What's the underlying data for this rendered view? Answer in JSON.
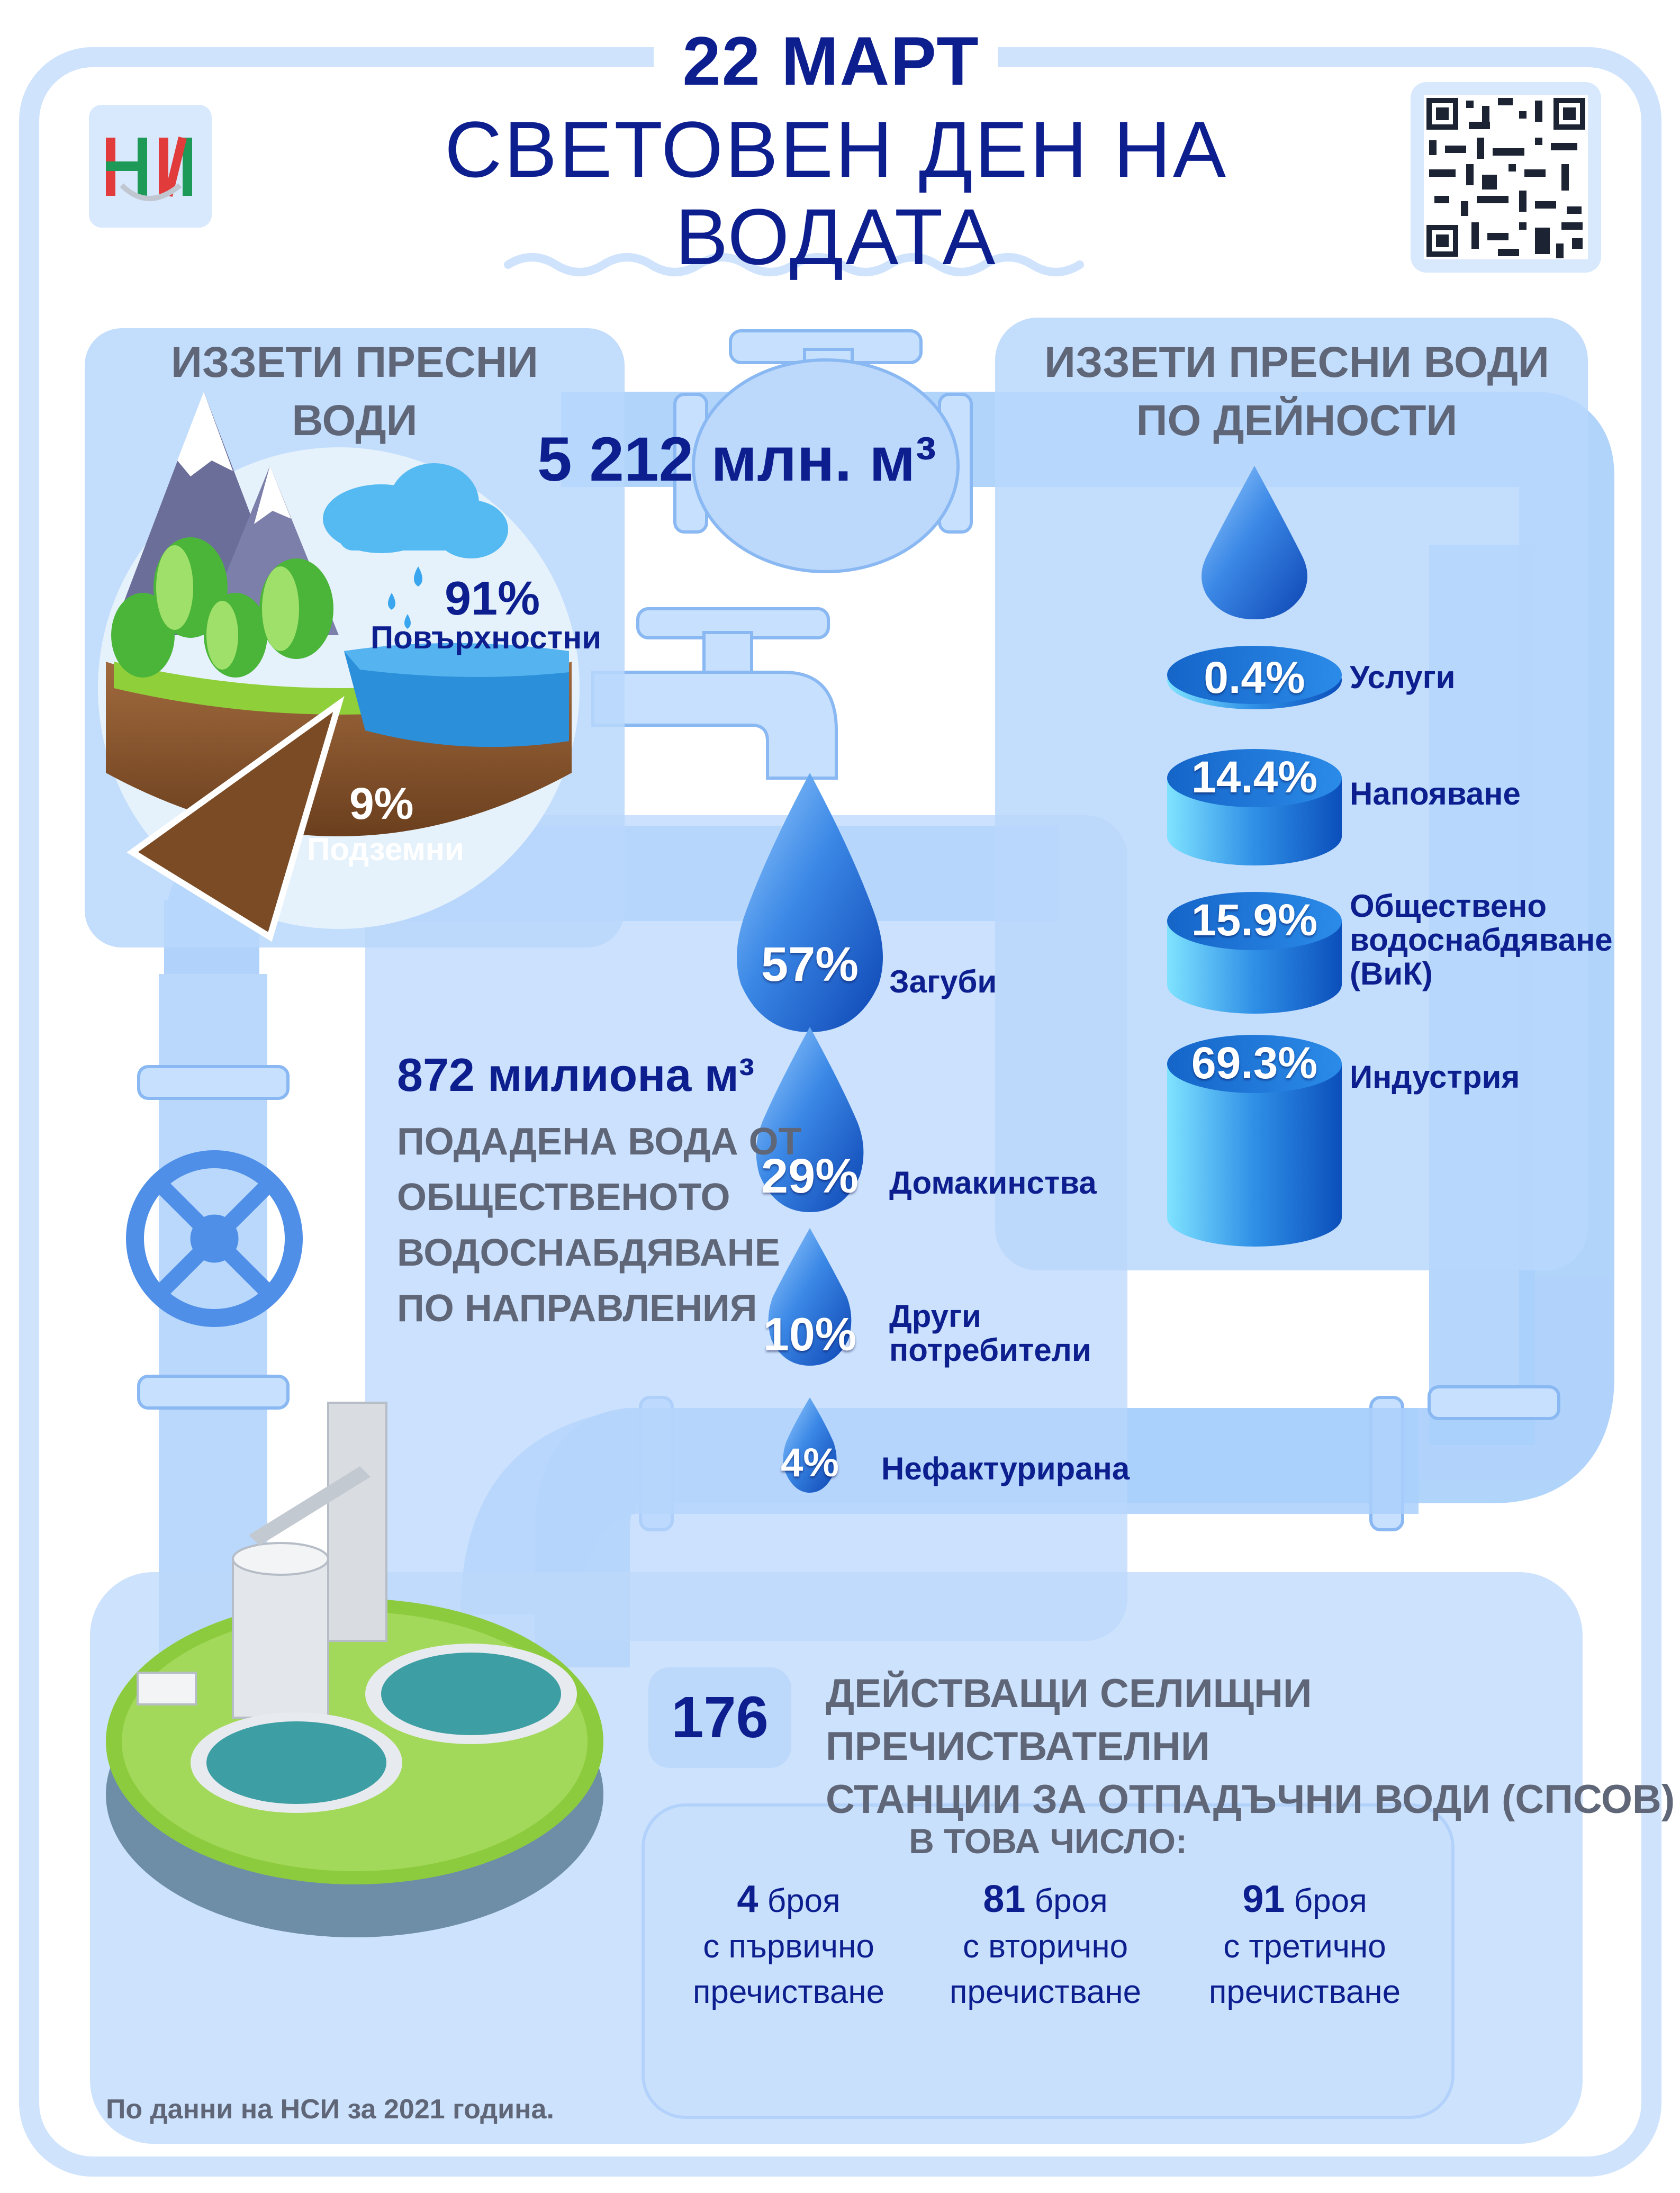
{
  "header": {
    "date": "22 МАРТ",
    "title_line1": "СВЕТОВЕН ДЕН НА",
    "title_line2": "ВОДАТА",
    "logo_text": "НСИ",
    "qr": "qr-code-icon"
  },
  "withdrawn": {
    "title": "ИЗЗЕТИ ПРЕСНИ ВОДИ",
    "total": "5 212 млн. м³",
    "surface_pct": "91%",
    "surface_label": "Повърхностни",
    "ground_pct": "9%",
    "ground_label": "Подземни"
  },
  "by_activity": {
    "title_line1": "ИЗЗЕТИ ПРЕСНИ ВОДИ",
    "title_line2": "ПО ДЕЙНОСТИ",
    "items": [
      {
        "pct": "0.4%",
        "label": "Услуги"
      },
      {
        "pct": "14.4%",
        "label": "Напояване"
      },
      {
        "pct": "15.9%",
        "label_line1": "Обществено",
        "label_line2": "водоснабдяване",
        "label_line3": "(ВиК)"
      },
      {
        "pct": "69.3%",
        "label": "Индустрия"
      }
    ]
  },
  "supply": {
    "amount": "872 милиона м³",
    "line1": "ПОДАДЕНА ВОДА ОТ",
    "line2": "ОБЩЕСТВЕНОТО",
    "line3": "ВОДОСНАБДЯВАНЕ",
    "line4": "ПО НАПРАВЛЕНИЯ",
    "drops": [
      {
        "pct": "57%",
        "label": "Загуби"
      },
      {
        "pct": "29%",
        "label": "Домакинства"
      },
      {
        "pct": "10%",
        "label_line1": "Други",
        "label_line2": "потребители"
      },
      {
        "pct": "4%",
        "label": "Нефактурирана"
      }
    ]
  },
  "treatment": {
    "count": "176",
    "line1": "ДЕЙСТВАЩИ СЕЛИЩНИ ПРЕЧИСТВАТЕЛНИ",
    "line2": "СТАНЦИИ ЗА ОТПАДЪЧНИ ВОДИ (СПСОВ)",
    "sub_title": "В ТОВА ЧИСЛО:",
    "columns": [
      {
        "num": "4",
        "unit": "броя",
        "line2": "с първично",
        "line3": "пречистване"
      },
      {
        "num": "81",
        "unit": "броя",
        "line2": "с вторично",
        "line3": "пречистване"
      },
      {
        "num": "91",
        "unit": "броя",
        "line2": "с третично",
        "line3": "пречистване"
      }
    ]
  },
  "footer": {
    "text": "По данни на НСИ за 2021 година."
  },
  "colors": {
    "navy": "#0d1f8f",
    "gray_text": "#5f6677",
    "pipe": "#9ec8fb",
    "panel": "#c7defd",
    "drop": "#1f66cf"
  }
}
